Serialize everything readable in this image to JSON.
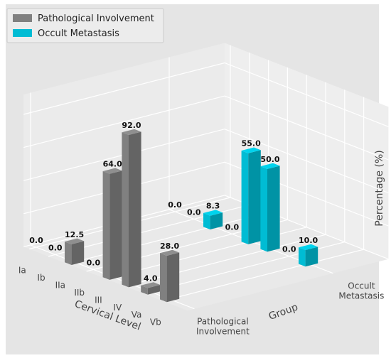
{
  "chart_data": {
    "type": "bar3d",
    "title": "",
    "xlabel": "Cervical Level",
    "ylabel": "Group",
    "zlabel": "Percentage (%)",
    "categories": [
      "Ia",
      "Ib",
      "IIa",
      "IIb",
      "III",
      "IV",
      "Va",
      "Vb"
    ],
    "groups": [
      "Pathological Involvement",
      "Occult Metastasis"
    ],
    "group_tick_labels": [
      "Pathological\nInvolvement",
      "Occult\nMetastasis"
    ],
    "zlim": [
      0,
      92
    ],
    "zticks": [
      0,
      20,
      40,
      60,
      80
    ],
    "legend_position": "top-left",
    "grid": true,
    "series": [
      {
        "name": "Pathological Involvement",
        "color": "#808080",
        "values": [
          0.0,
          0.0,
          12.5,
          0.0,
          64.0,
          92.0,
          4.0,
          28.0
        ],
        "labels": [
          "0.0",
          "0.0",
          "12.5",
          "0.0",
          "64.0",
          "92.0",
          "4.0",
          "28.0"
        ]
      },
      {
        "name": "Occult Metastasis",
        "color": "#00bcd4",
        "values": [
          0.0,
          0.0,
          8.3,
          0.0,
          55.0,
          50.0,
          0.0,
          10.0
        ],
        "labels": [
          "0.0",
          "0.0",
          "8.3",
          "0.0",
          "55.0",
          "50.0",
          "0.0",
          "10.0"
        ]
      }
    ]
  }
}
